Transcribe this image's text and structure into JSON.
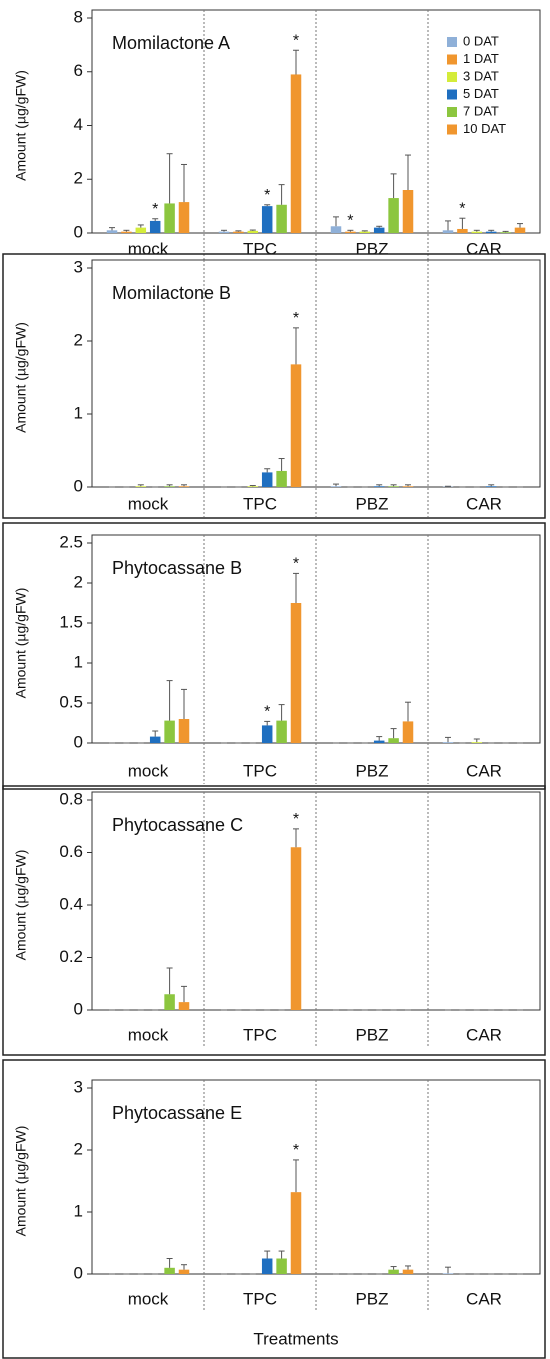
{
  "chart_data": [
    {
      "type": "bar",
      "title": "Momilactone A",
      "y_label": "Amount (µg/gFW)",
      "categories": [
        "mock",
        "TPC",
        "PBZ",
        "CAR"
      ],
      "ylim": [
        0,
        8
      ],
      "yticks": [
        0,
        2,
        4,
        6,
        8
      ],
      "legend": "upper right",
      "series": [
        {
          "name": "0 DAT",
          "color": "#8fb0d8",
          "values": [
            0.1,
            0.05,
            0.25,
            0.1
          ],
          "errors": [
            0.1,
            0.05,
            0.35,
            0.35
          ]
        },
        {
          "name": "1 DAT",
          "color": "#f0962e",
          "values": [
            0.05,
            0.05,
            0.05,
            0.15
          ],
          "errors": [
            0.05,
            0.03,
            0.05,
            0.4
          ],
          "significance": [
            null,
            null,
            "*",
            "*"
          ]
        },
        {
          "name": "3 DAT",
          "color": "#d4ec3a",
          "values": [
            0.2,
            0.08,
            0.05,
            0.05
          ],
          "errors": [
            0.1,
            0.03,
            0.03,
            0.05
          ]
        },
        {
          "name": "5 DAT",
          "color": "#1f6fc0",
          "values": [
            0.45,
            1.0,
            0.2,
            0.05
          ],
          "errors": [
            0.08,
            0.05,
            0.05,
            0.05
          ],
          "significance": [
            "*",
            "*",
            null,
            null
          ]
        },
        {
          "name": "7 DAT",
          "color": "#8cc63f",
          "values": [
            1.1,
            1.05,
            1.3,
            0.03
          ],
          "errors": [
            1.85,
            0.75,
            0.9,
            0.03
          ]
        },
        {
          "name": "10 DAT",
          "color": "#f0962e",
          "values": [
            1.15,
            5.9,
            1.6,
            0.2
          ],
          "errors": [
            1.4,
            0.9,
            1.3,
            0.15
          ],
          "significance": [
            null,
            "*",
            null,
            null
          ]
        }
      ]
    },
    {
      "type": "bar",
      "title": "Momilactone B",
      "y_label": "Amount (µg/gFW)",
      "categories": [
        "mock",
        "TPC",
        "PBZ",
        "CAR"
      ],
      "ylim": [
        0,
        3
      ],
      "yticks": [
        0,
        1,
        2,
        3
      ],
      "series": [
        {
          "color": "#8fb0d8",
          "values": [
            0,
            0,
            0.01,
            0.005
          ],
          "errors": [
            0,
            0,
            0.03,
            0.005
          ]
        },
        {
          "color": "#f0962e",
          "values": [
            0,
            0,
            0,
            0
          ],
          "errors": [
            0,
            0,
            0,
            0
          ]
        },
        {
          "color": "#d4ec3a",
          "values": [
            0.01,
            0.01,
            0,
            0
          ],
          "errors": [
            0.02,
            0.01,
            0,
            0
          ]
        },
        {
          "color": "#1f6fc0",
          "values": [
            0,
            0.2,
            0.01,
            0.01
          ],
          "errors": [
            0,
            0.05,
            0.02,
            0.02
          ]
        },
        {
          "color": "#8cc63f",
          "values": [
            0.01,
            0.22,
            0.01,
            0
          ],
          "errors": [
            0.02,
            0.17,
            0.02,
            0
          ]
        },
        {
          "color": "#f0962e",
          "values": [
            0.01,
            1.68,
            0.01,
            0
          ],
          "errors": [
            0.02,
            0.5,
            0.02,
            0
          ],
          "significance": [
            null,
            "*",
            null,
            null
          ]
        }
      ]
    },
    {
      "type": "bar",
      "title": "Phytocassane B",
      "y_label": "Amount (µg/gFW)",
      "categories": [
        "mock",
        "TPC",
        "PBZ",
        "CAR"
      ],
      "ylim": [
        0,
        2.5
      ],
      "yticks": [
        0,
        0.5,
        1,
        1.5,
        2,
        2.5
      ],
      "series": [
        {
          "color": "#8fb0d8",
          "values": [
            0,
            0,
            0,
            0.01
          ],
          "errors": [
            0,
            0,
            0,
            0.06
          ]
        },
        {
          "color": "#f0962e",
          "values": [
            0,
            0,
            0,
            0
          ],
          "errors": [
            0,
            0,
            0,
            0
          ]
        },
        {
          "color": "#d4ec3a",
          "values": [
            0,
            0,
            0,
            0.01
          ],
          "errors": [
            0,
            0,
            0,
            0.04
          ]
        },
        {
          "color": "#1f6fc0",
          "values": [
            0.08,
            0.22,
            0.03,
            0
          ],
          "errors": [
            0.07,
            0.05,
            0.05,
            0
          ],
          "significance": [
            null,
            "*",
            null,
            null
          ]
        },
        {
          "color": "#8cc63f",
          "values": [
            0.28,
            0.28,
            0.06,
            0
          ],
          "errors": [
            0.5,
            0.2,
            0.12,
            0
          ]
        },
        {
          "color": "#f0962e",
          "values": [
            0.3,
            1.75,
            0.27,
            0
          ],
          "errors": [
            0.37,
            0.37,
            0.24,
            0
          ],
          "significance": [
            null,
            "*",
            null,
            null
          ]
        }
      ]
    },
    {
      "type": "bar",
      "title": "Phytocassane C",
      "y_label": "Amount (µg/gFW)",
      "categories": [
        "mock",
        "TPC",
        "PBZ",
        "CAR"
      ],
      "ylim": [
        0,
        0.8
      ],
      "yticks": [
        0,
        0.2,
        0.4,
        0.6,
        0.8
      ],
      "series": [
        {
          "color": "#8fb0d8",
          "values": [
            0,
            0,
            0,
            0
          ],
          "errors": [
            0,
            0,
            0,
            0
          ]
        },
        {
          "color": "#f0962e",
          "values": [
            0,
            0,
            0,
            0
          ],
          "errors": [
            0,
            0,
            0,
            0
          ]
        },
        {
          "color": "#d4ec3a",
          "values": [
            0,
            0,
            0,
            0
          ],
          "errors": [
            0,
            0,
            0,
            0
          ]
        },
        {
          "color": "#1f6fc0",
          "values": [
            0,
            0,
            0,
            0
          ],
          "errors": [
            0,
            0,
            0,
            0
          ]
        },
        {
          "color": "#8cc63f",
          "values": [
            0.06,
            0,
            0,
            0
          ],
          "errors": [
            0.1,
            0,
            0,
            0
          ]
        },
        {
          "color": "#f0962e",
          "values": [
            0.03,
            0.62,
            0,
            0
          ],
          "errors": [
            0.06,
            0.07,
            0,
            0
          ],
          "significance": [
            null,
            "*",
            null,
            null
          ]
        }
      ]
    },
    {
      "type": "bar",
      "title": "Phytocassane E",
      "y_label": "Amount (µg/gFW)",
      "x_label": "Treatments",
      "categories": [
        "mock",
        "TPC",
        "PBZ",
        "CAR"
      ],
      "ylim": [
        0,
        3
      ],
      "yticks": [
        0,
        1,
        2,
        3
      ],
      "series": [
        {
          "color": "#8fb0d8",
          "values": [
            0,
            0,
            0,
            0.01
          ],
          "errors": [
            0,
            0,
            0,
            0.1
          ]
        },
        {
          "color": "#f0962e",
          "values": [
            0,
            0,
            0,
            0
          ],
          "errors": [
            0,
            0,
            0,
            0
          ]
        },
        {
          "color": "#d4ec3a",
          "values": [
            0,
            0,
            0,
            0
          ],
          "errors": [
            0,
            0,
            0,
            0
          ]
        },
        {
          "color": "#1f6fc0",
          "values": [
            0,
            0.25,
            0,
            0
          ],
          "errors": [
            0,
            0.12,
            0,
            0
          ]
        },
        {
          "color": "#8cc63f",
          "values": [
            0.1,
            0.25,
            0.07,
            0
          ],
          "errors": [
            0.15,
            0.12,
            0.05,
            0
          ]
        },
        {
          "color": "#f0962e",
          "values": [
            0.07,
            1.32,
            0.07,
            0
          ],
          "errors": [
            0.08,
            0.52,
            0.06,
            0
          ],
          "significance": [
            null,
            "*",
            null,
            null
          ]
        }
      ]
    }
  ]
}
